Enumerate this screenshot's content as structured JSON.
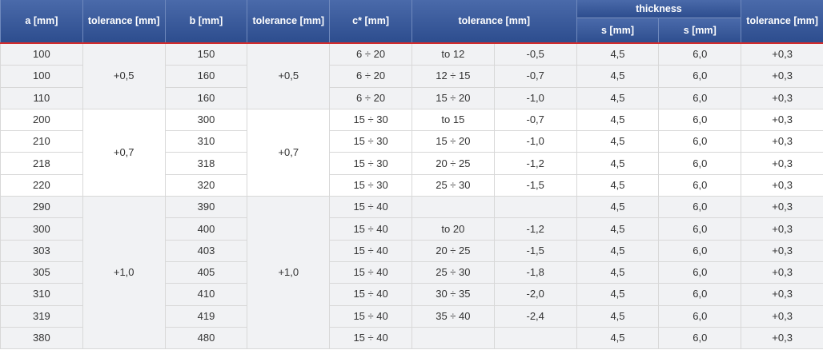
{
  "headers": {
    "a": "a [mm]",
    "tol_a": "tolerance [mm]",
    "b": "b [mm]",
    "tol_b": "tolerance [mm]",
    "c": "c* [mm]",
    "tol_c": "tolerance [mm]",
    "thickness": "thickness",
    "s1": "s [mm]",
    "s2": "s [mm]",
    "tol_s": "tolerance [mm]"
  },
  "groups": [
    {
      "tol_a": "+0,5",
      "tol_b": "+0,5",
      "rows": [
        {
          "a": "100",
          "b": "150",
          "c": "6 ÷ 20",
          "range": "to 12",
          "dev": "-0,5",
          "s1": "4,5",
          "s2": "6,0",
          "tol": "+0,3"
        },
        {
          "a": "100",
          "b": "160",
          "c": "6 ÷ 20",
          "range": "12 ÷ 15",
          "dev": "-0,7",
          "s1": "4,5",
          "s2": "6,0",
          "tol": "+0,3"
        },
        {
          "a": "110",
          "b": "160",
          "c": "6 ÷ 20",
          "range": "15 ÷ 20",
          "dev": "-1,0",
          "s1": "4,5",
          "s2": "6,0",
          "tol": "+0,3"
        }
      ]
    },
    {
      "tol_a": "+0,7",
      "tol_b": "+0,7",
      "rows": [
        {
          "a": "200",
          "b": "300",
          "c": "15 ÷ 30",
          "range": "to 15",
          "dev": "-0,7",
          "s1": "4,5",
          "s2": "6,0",
          "tol": "+0,3"
        },
        {
          "a": "210",
          "b": "310",
          "c": "15 ÷ 30",
          "range": "15 ÷ 20",
          "dev": "-1,0",
          "s1": "4,5",
          "s2": "6,0",
          "tol": "+0,3"
        },
        {
          "a": "218",
          "b": "318",
          "c": "15 ÷ 30",
          "range": "20 ÷ 25",
          "dev": "-1,2",
          "s1": "4,5",
          "s2": "6,0",
          "tol": "+0,3"
        },
        {
          "a": "220",
          "b": "320",
          "c": "15 ÷ 30",
          "range": "25 ÷ 30",
          "dev": "-1,5",
          "s1": "4,5",
          "s2": "6,0",
          "tol": "+0,3"
        }
      ]
    },
    {
      "tol_a": "+1,0",
      "tol_b": "+1,0",
      "rows": [
        {
          "a": "290",
          "b": "390",
          "c": "15 ÷ 40",
          "range": "",
          "dev": "",
          "s1": "4,5",
          "s2": "6,0",
          "tol": "+0,3"
        },
        {
          "a": "300",
          "b": "400",
          "c": "15 ÷ 40",
          "range": "to 20",
          "dev": "-1,2",
          "s1": "4,5",
          "s2": "6,0",
          "tol": "+0,3"
        },
        {
          "a": "303",
          "b": "403",
          "c": "15 ÷ 40",
          "range": "20 ÷ 25",
          "dev": "-1,5",
          "s1": "4,5",
          "s2": "6,0",
          "tol": "+0,3"
        },
        {
          "a": "305",
          "b": "405",
          "c": "15 ÷ 40",
          "range": "25 ÷ 30",
          "dev": "-1,8",
          "s1": "4,5",
          "s2": "6,0",
          "tol": "+0,3"
        },
        {
          "a": "310",
          "b": "410",
          "c": "15 ÷ 40",
          "range": "30 ÷ 35",
          "dev": "-2,0",
          "s1": "4,5",
          "s2": "6,0",
          "tol": "+0,3"
        },
        {
          "a": "319",
          "b": "419",
          "c": "15 ÷ 40",
          "range": "35 ÷ 40",
          "dev": "-2,4",
          "s1": "4,5",
          "s2": "6,0",
          "tol": "+0,3"
        },
        {
          "a": "380",
          "b": "480",
          "c": "15 ÷ 40",
          "range": "",
          "dev": "",
          "s1": "4,5",
          "s2": "6,0",
          "tol": "+0,3"
        }
      ]
    }
  ],
  "colors": {
    "header_top": "#4a6aaa",
    "header_bottom": "#2d4d8e",
    "header_rule": "#d42b2b",
    "row_shaded": "#f1f2f4",
    "row_plain": "#ffffff",
    "text": "#333333"
  }
}
